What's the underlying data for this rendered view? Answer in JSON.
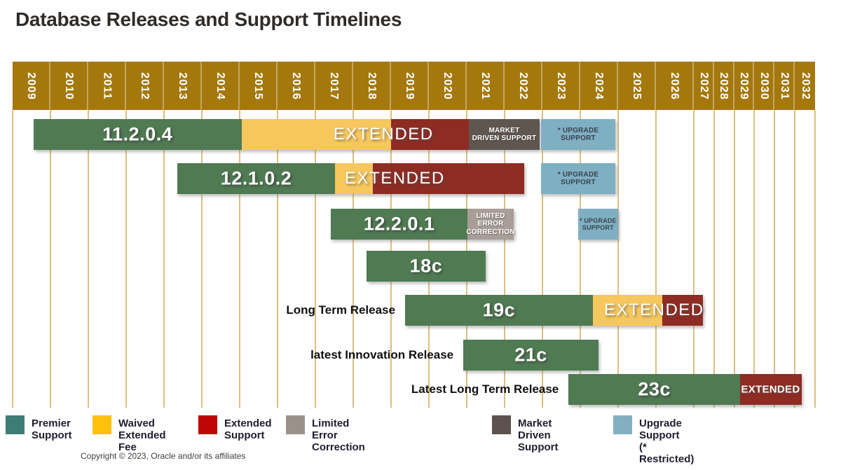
{
  "title": "Database Releases and Support Timelines",
  "footer": {
    "copyright": "Copyright © 2023, Oracle and/or  its affiliates"
  },
  "colors": {
    "band": "#A4780D",
    "grid": "#DCBE80",
    "bars": {
      "premier": "#4F7A52",
      "waived": "#F6C75D",
      "extended": "#8E2B22",
      "limited": "#A89D97",
      "market": "#5F564F",
      "upgrade": "#7FAFC2"
    },
    "legend_swatches": {
      "premier": "#3E7D74",
      "waived": "#FFC10D",
      "extended": "#C00506",
      "limited": "#9B918B",
      "market": "#5C534E",
      "upgrade": "#84AFC1"
    }
  },
  "chart_data": {
    "type": "gantt",
    "title": "Database Releases and Support Timelines",
    "x_axis": {
      "unit": "year",
      "start": 2009,
      "end": 2033,
      "tick_labels": [
        "2009",
        "2010",
        "2011",
        "2012",
        "2013",
        "2014",
        "2015",
        "2016",
        "2017",
        "2018",
        "2019",
        "2020",
        "2021",
        "2022",
        "2023",
        "2024",
        "2025",
        "2026",
        "2027",
        "2028",
        "2029",
        "2030",
        "2031",
        "2032"
      ],
      "compressed_from": 2027
    },
    "legend_position": "bottom",
    "rows": [
      {
        "release": "11.2.0.4",
        "segments": [
          {
            "kind": "premier",
            "label": "11.2.0.4",
            "start": 2009.55,
            "end": 2015.05
          },
          {
            "kind": "waived",
            "start": 2015.05,
            "end": 2019.0
          },
          {
            "kind": "extended",
            "start": 2019.0,
            "end": 2021.05
          },
          {
            "kind": "market",
            "text": "MARKET\nDRIVEN SUPPORT",
            "start": 2021.05,
            "end": 2022.93
          },
          {
            "kind": "upgrade",
            "text": "* UPGRADE\nSUPPORT",
            "start": 2022.96,
            "end": 2024.93
          }
        ],
        "float_labels": [
          {
            "text": "EXTENDED",
            "center": 2018.8,
            "size": "large"
          }
        ]
      },
      {
        "release": "12.1.0.2",
        "segments": [
          {
            "kind": "premier",
            "label": "12.1.0.2",
            "start": 2013.35,
            "end": 2017.52
          },
          {
            "kind": "waived",
            "start": 2017.52,
            "end": 2018.52
          },
          {
            "kind": "extended",
            "start": 2018.52,
            "end": 2022.52
          },
          {
            "kind": "upgrade",
            "text": "* UPGRADE\nSUPPORT",
            "start": 2022.96,
            "end": 2024.93
          }
        ],
        "float_labels": [
          {
            "text": "EXTENDED",
            "center": 2019.1,
            "size": "large"
          }
        ]
      },
      {
        "release": "12.2.0.1",
        "segments": [
          {
            "kind": "premier",
            "label": "12.2.0.1",
            "start": 2017.41,
            "end": 2021.02
          },
          {
            "kind": "limited",
            "text": "LIMITED ERROR\nCORRECTION",
            "start": 2021.02,
            "end": 2022.24
          },
          {
            "kind": "upgrade",
            "text": "* UPGRADE\nSUPPORT",
            "start": 2023.94,
            "end": 2025.0,
            "small": true
          }
        ]
      },
      {
        "release": "18c",
        "segments": [
          {
            "kind": "premier",
            "label": "18c",
            "start": 2018.35,
            "end": 2021.5
          }
        ]
      },
      {
        "release": "19c",
        "side_label": "Long Term Release",
        "segments": [
          {
            "kind": "premier",
            "label": "19c",
            "start": 2019.37,
            "end": 2024.33
          },
          {
            "kind": "waived",
            "start": 2024.33,
            "end": 2026.17
          },
          {
            "kind": "extended",
            "start": 2026.17,
            "end": 2027.45
          }
        ],
        "float_labels": [
          {
            "text": "EXTENDED",
            "center": 2025.95,
            "size": "large"
          }
        ]
      },
      {
        "release": "21c",
        "side_label": "latest Innovation Release",
        "segments": [
          {
            "kind": "premier",
            "label": "21c",
            "start": 2020.91,
            "end": 2024.48
          }
        ]
      },
      {
        "release": "23c",
        "side_label": "Latest Long Term Release",
        "segments": [
          {
            "kind": "premier",
            "label": "23c",
            "start": 2023.69,
            "end": 2029.29
          },
          {
            "kind": "extended",
            "start": 2029.29,
            "end": 2032.35
          }
        ],
        "float_labels": [
          {
            "text": "EXTENDED",
            "center": 2030.8,
            "size": "small"
          }
        ]
      }
    ],
    "legend": [
      {
        "kind": "premier",
        "label": "Premier Support"
      },
      {
        "kind": "waived",
        "label": "Waived Extended Fee"
      },
      {
        "kind": "extended",
        "label": "Extended Support"
      },
      {
        "kind": "limited",
        "label": "Limited Error Correction"
      },
      {
        "kind": "market",
        "label": "Market Driven Support"
      },
      {
        "kind": "upgrade",
        "label": "Upgrade Support\n(* Restricted)"
      }
    ]
  }
}
